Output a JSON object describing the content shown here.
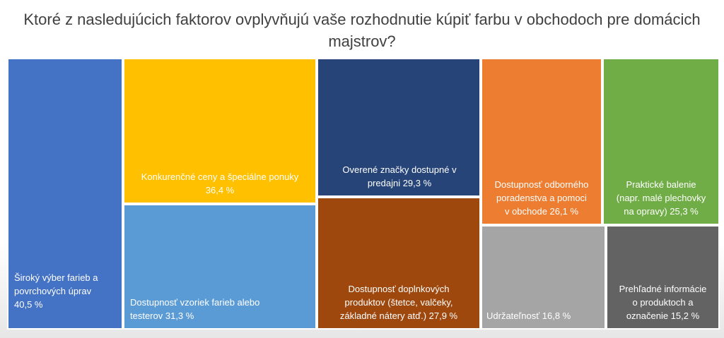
{
  "chart_data": {
    "type": "treemap",
    "title": "Ktoré z nasledujúcich faktorov ovplyvňujú vaše rozhodnutie kúpiť farbu v obchodoch pre domácich majstrov?",
    "unit": "%",
    "items": [
      {
        "label": "Široký výber farieb a\npovrchových úprav\n40,5 %",
        "value": 40.5,
        "color": "#4472c4"
      },
      {
        "label": "Konkurenčné ceny a špeciálne ponuky\n36,4 %",
        "value": 36.4,
        "color": "#ffc000"
      },
      {
        "label": "Dostupnosť vzoriek farieb alebo\ntesterov  31,3 %",
        "value": 31.3,
        "color": "#5b9bd5"
      },
      {
        "label": "Overené značky dostupné v\npredajni 29,3 %",
        "value": 29.3,
        "color": "#264478"
      },
      {
        "label": "Dostupnosť doplnkových\nproduktov (štetce, valčeky,\nzákladné nátery atď.) 27,9 %",
        "value": 27.9,
        "color": "#9e480e"
      },
      {
        "label": "Dostupnosť odborného\nporadenstva a pomoci\nv obchode 26,1 %",
        "value": 26.1,
        "color": "#ed7d31"
      },
      {
        "label": "Praktické balenie\n(napr. malé plechovky\nna opravy) 25,3 %",
        "value": 25.3,
        "color": "#70ad47"
      },
      {
        "label": "Udržateľnosť 16,8 %",
        "value": 16.8,
        "color": "#a5a5a5"
      },
      {
        "label": "Prehľadné informácie\no produktoch a\noznačenie 15,2 %",
        "value": 15.2,
        "color": "#636363"
      }
    ]
  }
}
